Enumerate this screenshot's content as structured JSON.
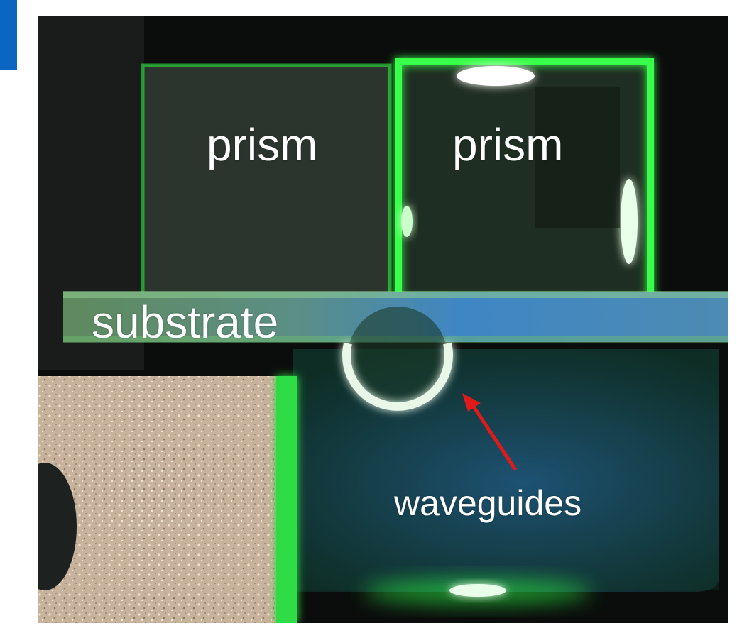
{
  "figure": {
    "labels": {
      "prism_left": "prism",
      "prism_right": "prism",
      "substrate": "substrate",
      "waveguides": "waveguides"
    },
    "colors": {
      "corner_tab": "#0a66c2",
      "laser_green": "#37ff4a",
      "arrow": "#e01a1a",
      "background": "#0b0d0c",
      "substrate_blue": "#3b84c6"
    }
  }
}
